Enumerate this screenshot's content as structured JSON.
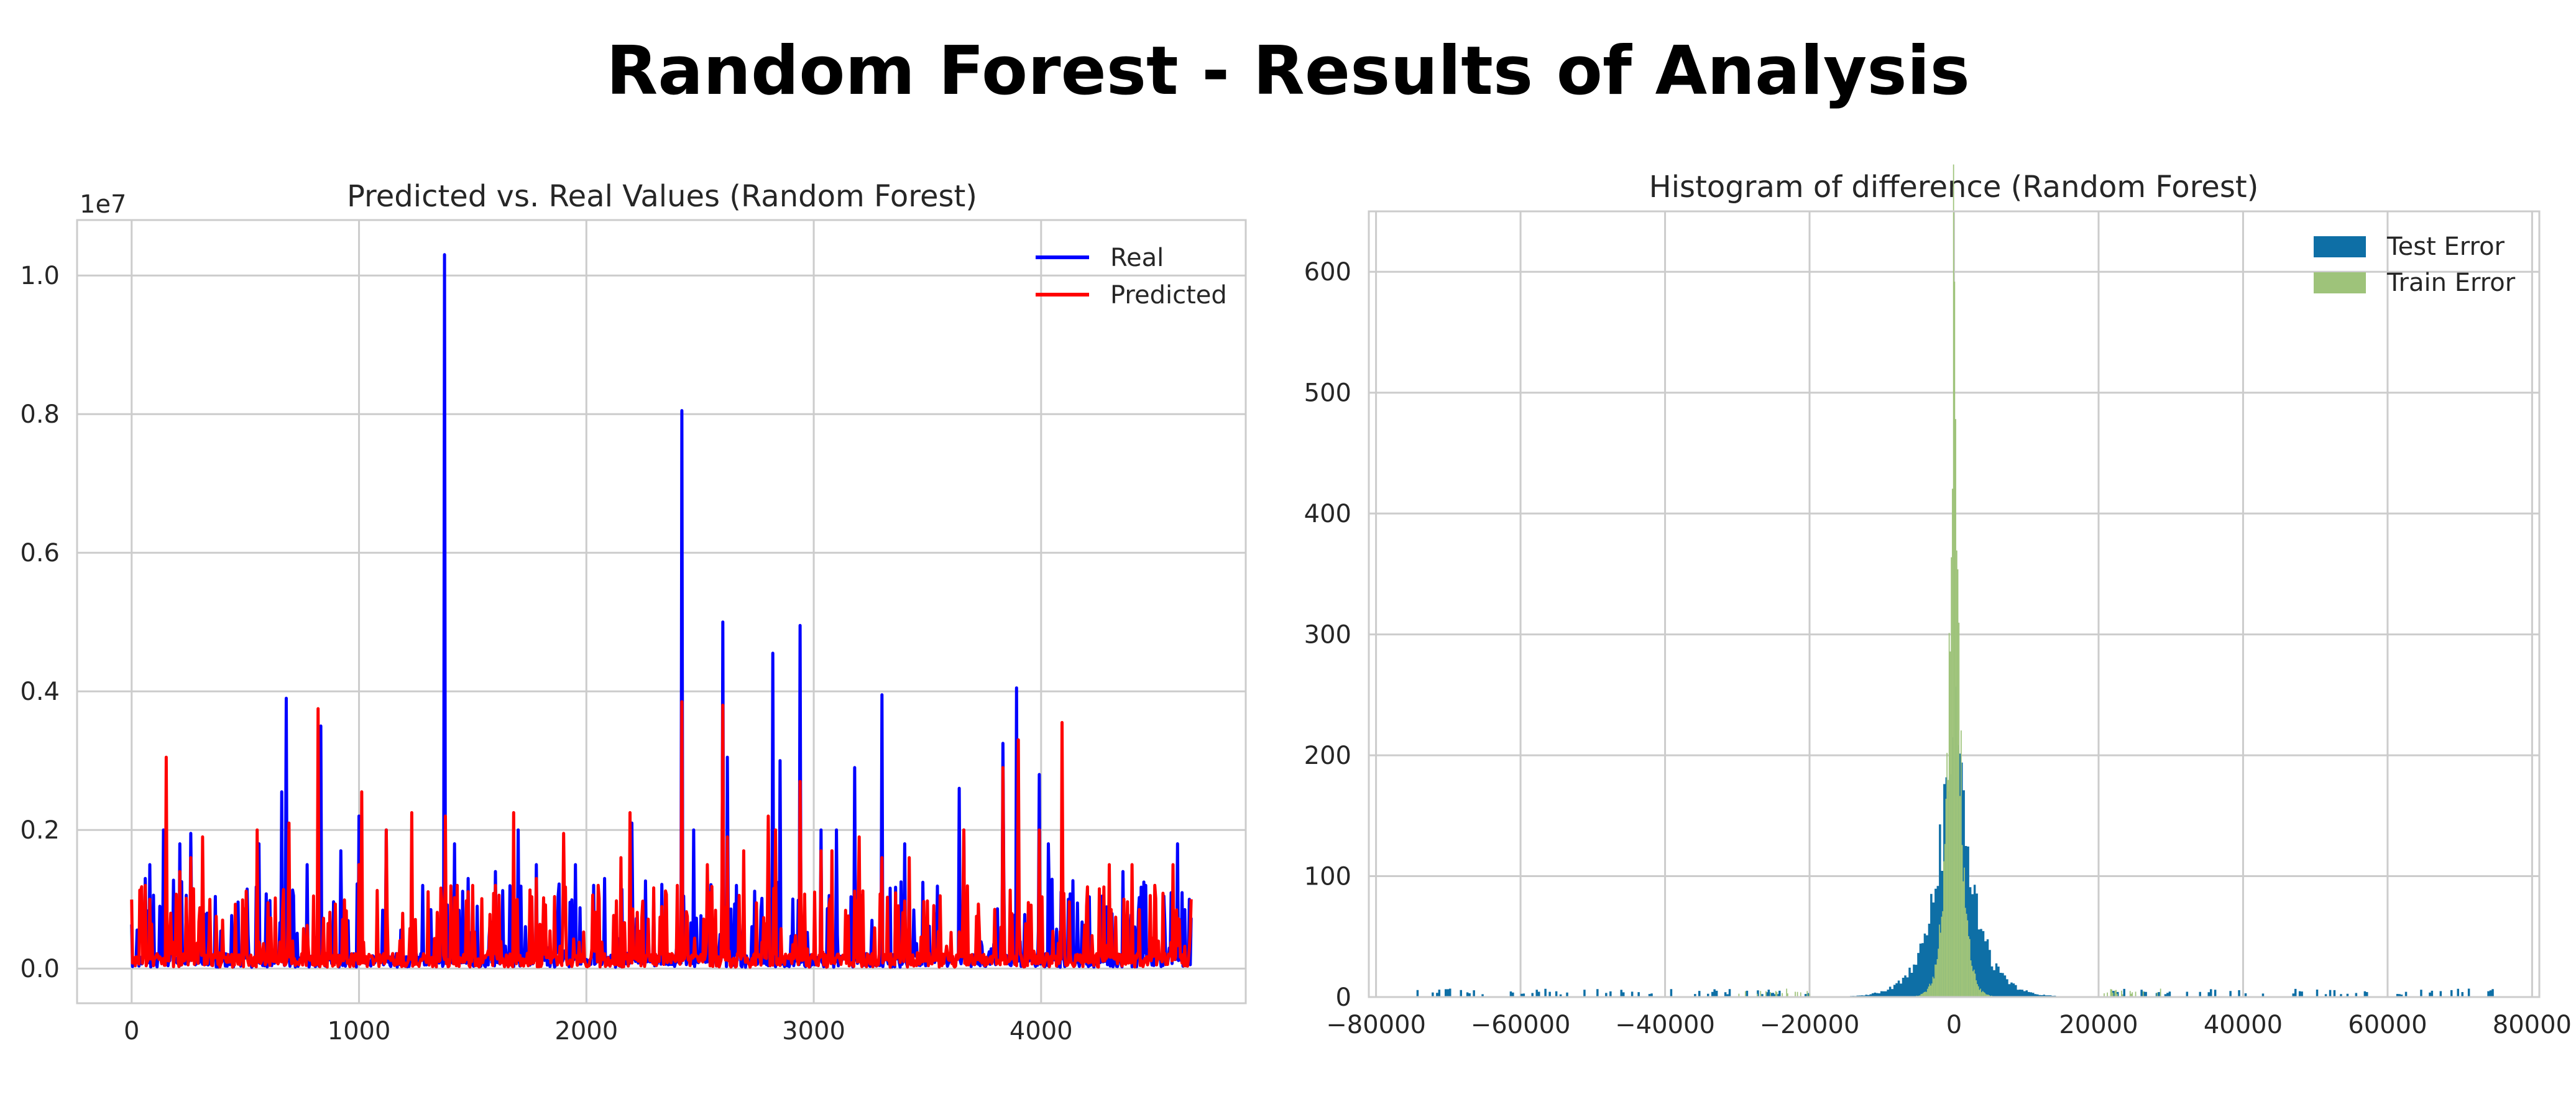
{
  "figure": {
    "title": "Random Forest - Results of Analysis"
  },
  "chart_data": [
    {
      "type": "line",
      "title": "Predicted vs. Real Values (Random Forest)",
      "xlabel": "",
      "ylabel": "",
      "offset_label": "1e7",
      "xlim": [
        -240,
        4900
      ],
      "ylim": [
        -0.05,
        1.08
      ],
      "x_ticks": [
        0,
        1000,
        2000,
        3000,
        4000
      ],
      "y_ticks": [
        0.0,
        0.2,
        0.4,
        0.6,
        0.8,
        1.0
      ],
      "grid": true,
      "legend_position": "top-right",
      "series": [
        {
          "name": "Real",
          "color": "#0000ff",
          "spikes": [
            [
              60,
              0.13
            ],
            [
              80,
              0.15
            ],
            [
              140,
              0.2
            ],
            [
              210,
              0.18
            ],
            [
              260,
              0.195
            ],
            [
              330,
              0.08
            ],
            [
              560,
              0.18
            ],
            [
              660,
              0.255
            ],
            [
              680,
              0.39
            ],
            [
              770,
              0.15
            ],
            [
              830,
              0.35
            ],
            [
              920,
              0.17
            ],
            [
              1000,
              0.22
            ],
            [
              1120,
              0.2
            ],
            [
              1280,
              0.12
            ],
            [
              1375,
              1.03
            ],
            [
              1420,
              0.18
            ],
            [
              1480,
              0.13
            ],
            [
              1600,
              0.14
            ],
            [
              1700,
              0.2
            ],
            [
              1780,
              0.15
            ],
            [
              1950,
              0.15
            ],
            [
              2080,
              0.13
            ],
            [
              2200,
              0.21
            ],
            [
              2420,
              0.805
            ],
            [
              2470,
              0.2
            ],
            [
              2600,
              0.5
            ],
            [
              2620,
              0.305
            ],
            [
              2660,
              0.12
            ],
            [
              2820,
              0.455
            ],
            [
              2850,
              0.3
            ],
            [
              2940,
              0.495
            ],
            [
              3030,
              0.2
            ],
            [
              3100,
              0.2
            ],
            [
              3180,
              0.29
            ],
            [
              3300,
              0.395
            ],
            [
              3400,
              0.18
            ],
            [
              3640,
              0.26
            ],
            [
              3660,
              0.2
            ],
            [
              3830,
              0.325
            ],
            [
              3890,
              0.405
            ],
            [
              3990,
              0.28
            ],
            [
              4030,
              0.18
            ],
            [
              4120,
              0.1
            ],
            [
              4360,
              0.14
            ],
            [
              4460,
              0.12
            ],
            [
              4600,
              0.18
            ],
            [
              4650,
              0.1
            ]
          ]
        },
        {
          "name": "Predicted",
          "color": "#ff0000",
          "spikes": [
            [
              60,
              0.12
            ],
            [
              80,
              0.1
            ],
            [
              150,
              0.305
            ],
            [
              210,
              0.14
            ],
            [
              260,
              0.16
            ],
            [
              310,
              0.19
            ],
            [
              400,
              0.07
            ],
            [
              550,
              0.2
            ],
            [
              690,
              0.21
            ],
            [
              820,
              0.375
            ],
            [
              1000,
              0.15
            ],
            [
              1010,
              0.255
            ],
            [
              1120,
              0.2
            ],
            [
              1230,
              0.225
            ],
            [
              1380,
              0.22
            ],
            [
              1430,
              0.12
            ],
            [
              1500,
              0.12
            ],
            [
              1600,
              0.12
            ],
            [
              1680,
              0.225
            ],
            [
              1780,
              0.13
            ],
            [
              1900,
              0.195
            ],
            [
              2050,
              0.12
            ],
            [
              2150,
              0.16
            ],
            [
              2190,
              0.225
            ],
            [
              2400,
              0.12
            ],
            [
              2420,
              0.385
            ],
            [
              2530,
              0.15
            ],
            [
              2600,
              0.38
            ],
            [
              2620,
              0.19
            ],
            [
              2690,
              0.17
            ],
            [
              2800,
              0.22
            ],
            [
              2830,
              0.2
            ],
            [
              2940,
              0.27
            ],
            [
              3030,
              0.17
            ],
            [
              3080,
              0.17
            ],
            [
              3200,
              0.19
            ],
            [
              3300,
              0.16
            ],
            [
              3420,
              0.16
            ],
            [
              3660,
              0.2
            ],
            [
              3830,
              0.29
            ],
            [
              3900,
              0.33
            ],
            [
              3990,
              0.2
            ],
            [
              4090,
              0.355
            ],
            [
              4200,
              0.09
            ],
            [
              4300,
              0.15
            ],
            [
              4400,
              0.15
            ],
            [
              4500,
              0.12
            ],
            [
              4580,
              0.15
            ],
            [
              4660,
              0.1
            ]
          ]
        }
      ]
    },
    {
      "type": "bar",
      "subtype": "histogram",
      "title": "Histogram of difference (Random Forest)",
      "xlabel": "",
      "ylabel": "",
      "xlim": [
        -81000,
        81000
      ],
      "ylim": [
        0,
        650
      ],
      "x_ticks": [
        -80000,
        -60000,
        -40000,
        -20000,
        0,
        20000,
        40000,
        60000,
        80000
      ],
      "y_ticks": [
        0,
        100,
        200,
        300,
        400,
        500,
        600
      ],
      "grid": true,
      "legend_position": "top-right",
      "series": [
        {
          "name": "Test Error",
          "color": "#0e6fa6",
          "peak": [
            250,
            270,
            180
          ],
          "scale": 2500
        },
        {
          "name": "Train Error",
          "color": "#9ec37a",
          "peak": [
            620,
            560,
            420
          ],
          "scale": 800
        }
      ]
    }
  ]
}
